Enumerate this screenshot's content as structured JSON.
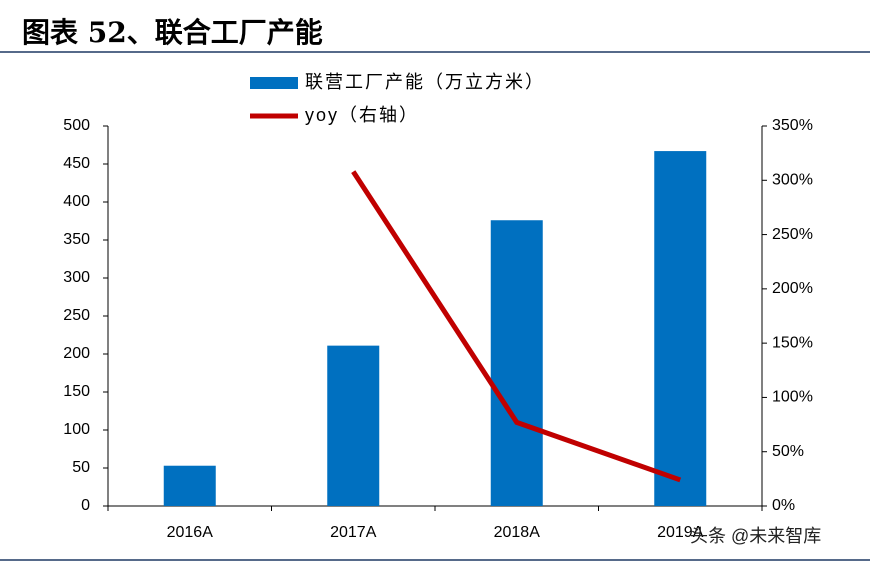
{
  "chart_data": {
    "type": "bar",
    "title": "图表 52、联合工厂产能",
    "categories": [
      "2016A",
      "2017A",
      "2018A",
      "2019A"
    ],
    "series": [
      {
        "name": "联营工厂产能（万立方米）",
        "color": "#0070c0",
        "type": "bar",
        "values": [
          53,
          211,
          376,
          467
        ]
      },
      {
        "name": "yoy（右轴）",
        "color": "#c00000",
        "type": "line",
        "axis": "y2",
        "values": [
          null,
          308,
          77,
          24
        ]
      }
    ],
    "ylim": [
      0,
      500
    ],
    "yticks": [
      0,
      50,
      100,
      150,
      200,
      250,
      300,
      350,
      400,
      450,
      500
    ],
    "y2lim": [
      0,
      350
    ],
    "y2ticks": [
      {
        "value": 0,
        "label": "0%"
      },
      {
        "value": 50,
        "label": "50%"
      },
      {
        "value": 100,
        "label": "100%"
      },
      {
        "value": 150,
        "label": "150%"
      },
      {
        "value": 200,
        "label": "200%"
      },
      {
        "value": 250,
        "label": "250%"
      },
      {
        "value": 300,
        "label": "300%"
      },
      {
        "value": 350,
        "label": "350%"
      }
    ],
    "watermark": "头条 @未来智库"
  }
}
